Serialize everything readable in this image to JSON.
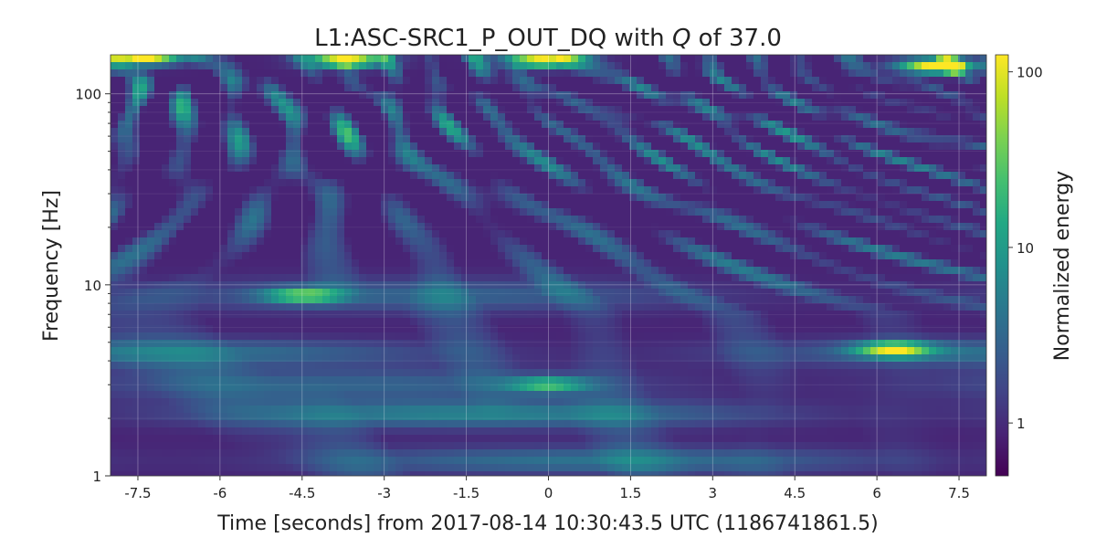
{
  "chart_data": {
    "type": "heatmap",
    "title_main": "L1:ASC-SRC1_P_OUT_DQ with ",
    "title_q": "Q",
    "title_tail": " of 37.0",
    "xlabel": "Time [seconds] from 2017-08-14 10:30:43.5 UTC (1186741861.5)",
    "ylabel": "Frequency [Hz]",
    "colorbar_label": "Normalized energy",
    "xlim": [
      -8,
      8
    ],
    "ylim": [
      1,
      160
    ],
    "y_scale": "log",
    "x_ticks": [
      -7.5,
      -6,
      -4.5,
      -3,
      -1.5,
      0,
      1.5,
      3,
      4.5,
      6,
      7.5
    ],
    "x_tick_labels": [
      "-7.5",
      "-6",
      "-4.5",
      "-3",
      "-1.5",
      "0",
      "1.5",
      "3",
      "4.5",
      "6",
      "7.5"
    ],
    "y_ticks": [
      1,
      10,
      100
    ],
    "y_tick_labels": [
      "1",
      "10",
      "100"
    ],
    "colorbar_range": [
      0.5,
      125
    ],
    "colorbar_scale": "log",
    "colorbar_ticks": [
      1,
      10,
      100
    ],
    "colorbar_tick_labels": [
      "1",
      "10",
      "100"
    ],
    "grid": true,
    "colormap": "viridis",
    "notable_features": [
      {
        "time": 6.3,
        "frequency": 4.6,
        "energy": 25
      },
      {
        "time": 0.0,
        "frequency": 3.0,
        "energy": 8
      },
      {
        "time": -4.5,
        "frequency": 8.8,
        "energy": 10
      },
      {
        "time": -7.4,
        "frequency": 155,
        "energy": 100
      },
      {
        "time": -3.7,
        "frequency": 150,
        "energy": 100
      },
      {
        "time": -0.1,
        "frequency": 150,
        "energy": 90
      },
      {
        "time": 7.1,
        "frequency": 140,
        "energy": 110
      }
    ]
  },
  "colors": {
    "viridis": [
      "#440154",
      "#482475",
      "#414487",
      "#355f8d",
      "#2a788e",
      "#21918c",
      "#22a884",
      "#44bf70",
      "#7ad151",
      "#bddf26",
      "#fde725"
    ]
  }
}
